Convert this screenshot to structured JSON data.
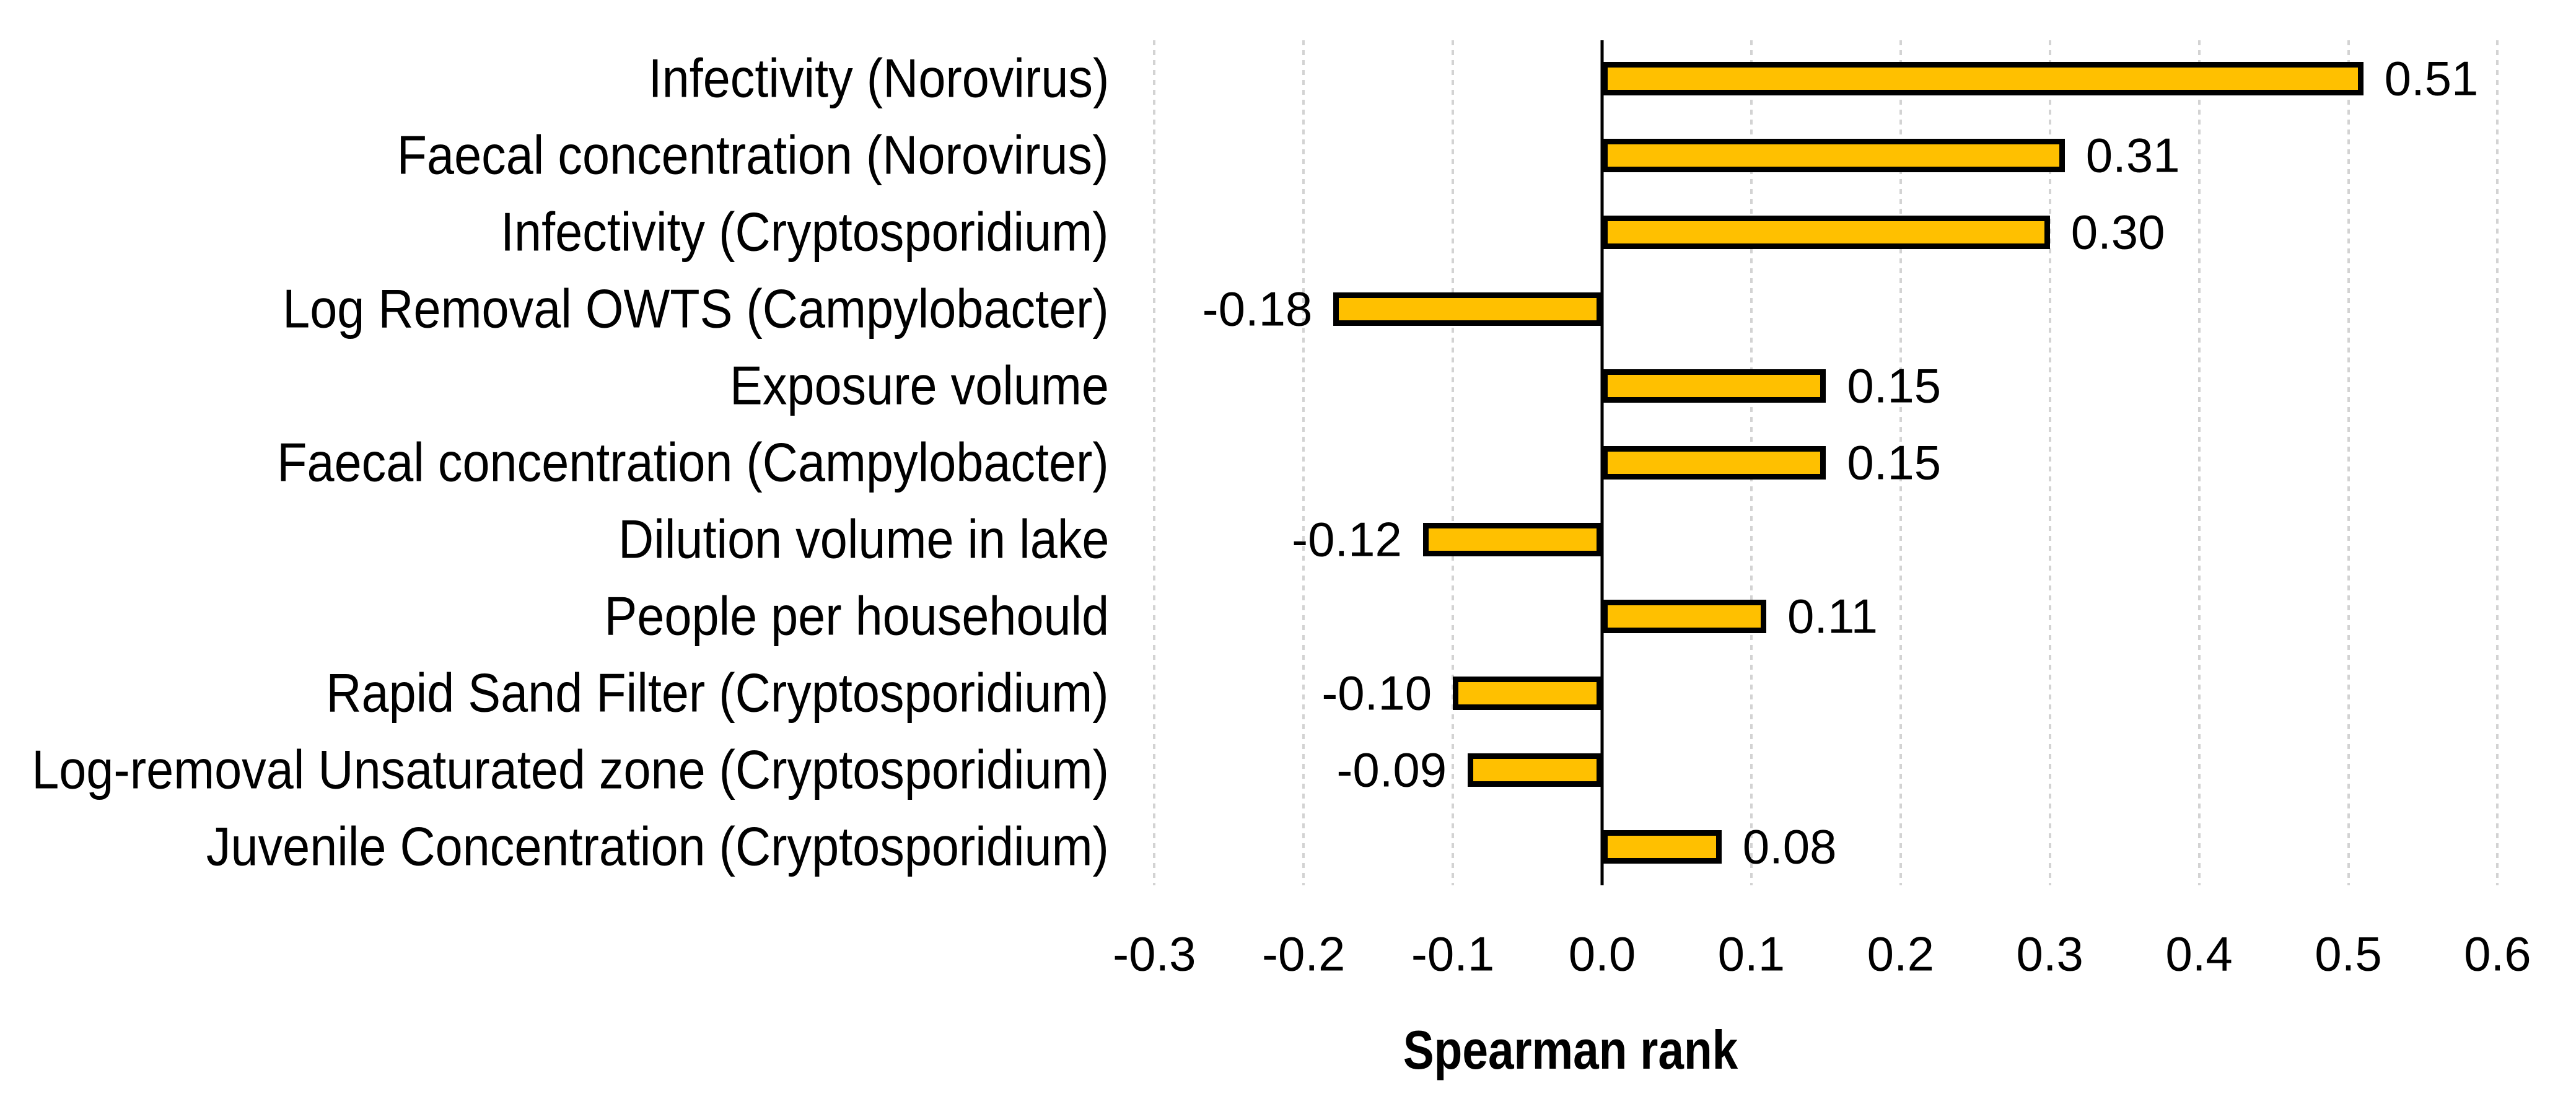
{
  "chart_data": {
    "type": "bar",
    "orientation": "horizontal",
    "title": "",
    "xlabel": "Spearman rank",
    "ylabel": "",
    "categories": [
      "Infectivity (Norovirus)",
      "Faecal concentration (Norovirus)",
      "Infectivity (Cryptosporidium)",
      "Log Removal OWTS (Campylobacter)",
      "Exposure volume",
      "Faecal concentration (Campylobacter)",
      "Dilution volume in lake",
      "People per househould",
      "Rapid Sand Filter (Cryptosporidium)",
      "Log-removal Unsaturated zone (Cryptosporidium)",
      "Juvenile Concentration (Cryptosporidium)"
    ],
    "values": [
      0.51,
      0.31,
      0.3,
      -0.18,
      0.15,
      0.15,
      -0.12,
      0.11,
      -0.1,
      -0.09,
      0.08
    ],
    "value_labels": [
      "0.51",
      "0.31",
      "0.30",
      "-0.18",
      "0.15",
      "0.15",
      "-0.12",
      "0.11",
      "-0.10",
      "-0.09",
      "0.08"
    ],
    "xlim": [
      -0.3,
      0.6
    ],
    "xticks": [
      -0.3,
      -0.2,
      -0.1,
      0.0,
      0.1,
      0.2,
      0.3,
      0.4,
      0.5,
      0.6
    ],
    "xtick_labels": [
      "-0.3",
      "-0.2",
      "-0.1",
      "0.0",
      "0.1",
      "0.2",
      "0.3",
      "0.4",
      "0.5",
      "0.6"
    ],
    "grid": "vertical-dashed",
    "legend": "none",
    "colors": {
      "bar_fill": "#FFC000",
      "bar_border": "#000000",
      "gridline": "#D3D3D3",
      "zero_axis_line": "#000000",
      "text": "#000000",
      "background": "#FFFFFF"
    }
  }
}
